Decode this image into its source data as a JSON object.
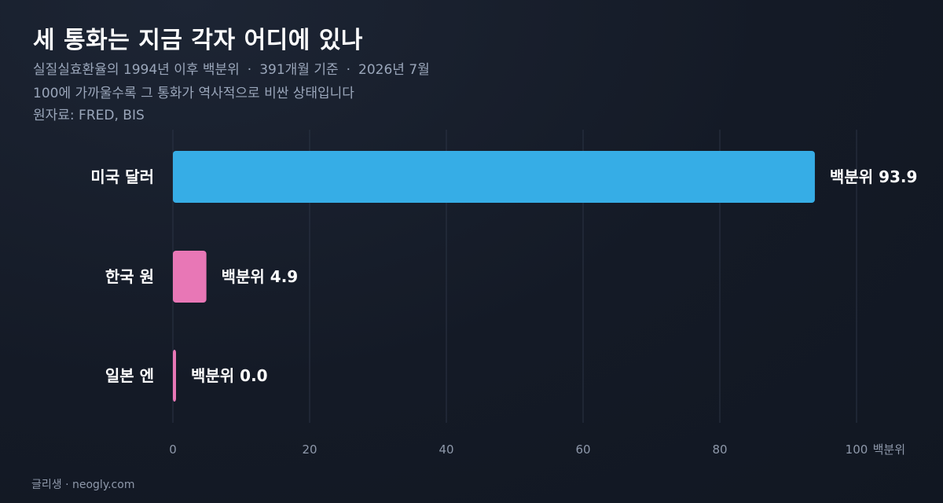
{
  "header": {
    "title": "세 통화는 지금 각자 어디에 있나",
    "subtitle_part1": "실질실효환율의 1994년 이후 백분위",
    "subtitle_part2": "391개월 기준",
    "subtitle_part3": "2026년 7월",
    "separator": "·",
    "subtitle_line2": "100에 가까울수록 그 통화가 역사적으로 비싼 상태입니다",
    "source": "원자료: FRED, BIS"
  },
  "footer": {
    "credit": "글리생 · neogly.com"
  },
  "colors": {
    "usd": "#36ade6",
    "krw": "#e877b6",
    "jpy": "#e877b6",
    "grid": "#2b3344",
    "tick": "#8e98aa"
  },
  "chart_data": {
    "type": "bar",
    "orientation": "horizontal",
    "categories": [
      "미국 달러",
      "한국 원",
      "일본 엔"
    ],
    "values": [
      93.9,
      4.9,
      0.0
    ],
    "value_labels": [
      "백분위 93.9",
      "백분위 4.9",
      "백분위 0.0"
    ],
    "xlim": [
      0,
      100
    ],
    "xticks": [
      0,
      20,
      40,
      60,
      80,
      100
    ],
    "xtick_labels": [
      "0",
      "20",
      "40",
      "60",
      "80",
      "100"
    ],
    "xlabel": "백분위",
    "grid": true
  }
}
